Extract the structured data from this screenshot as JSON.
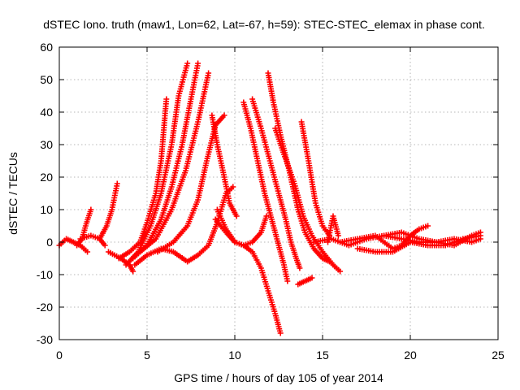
{
  "chart_data": {
    "type": "scatter",
    "title": "dSTEC Iono. truth (maw1, Lon=62, Lat=-67, h=59): STEC-STEC_elemax in phase cont.",
    "xlabel": "GPS time / hours of day 105 of year 2014",
    "ylabel": "dSTEC  / TECUs",
    "xlim": [
      0,
      25
    ],
    "ylim": [
      -30,
      60
    ],
    "xticks": [
      0,
      5,
      10,
      15,
      20,
      25
    ],
    "yticks": [
      -30,
      -20,
      -10,
      0,
      10,
      20,
      30,
      40,
      50,
      60
    ],
    "grid": true,
    "marker": "plus",
    "color": "#ff0000",
    "series": [
      {
        "points": [
          [
            0.0,
            -1
          ],
          [
            0.4,
            1
          ],
          [
            0.8,
            0
          ],
          [
            1.2,
            -1
          ],
          [
            1.6,
            -3
          ]
        ]
      },
      {
        "points": [
          [
            1.0,
            -1
          ],
          [
            1.3,
            1
          ],
          [
            1.5,
            5
          ],
          [
            1.8,
            10
          ]
        ]
      },
      {
        "points": [
          [
            1.2,
            1
          ],
          [
            1.8,
            2
          ],
          [
            2.3,
            1
          ],
          [
            2.6,
            -1
          ]
        ]
      },
      {
        "points": [
          [
            2.3,
            1
          ],
          [
            2.7,
            5
          ],
          [
            3.0,
            10
          ],
          [
            3.3,
            18
          ]
        ]
      },
      {
        "points": [
          [
            2.8,
            -3
          ],
          [
            3.5,
            -5
          ],
          [
            4.0,
            -7
          ],
          [
            4.2,
            -9
          ]
        ]
      },
      {
        "points": [
          [
            3.4,
            -5
          ],
          [
            4.0,
            -3
          ],
          [
            4.6,
            0
          ],
          [
            5.0,
            6
          ],
          [
            5.5,
            15
          ],
          [
            5.8,
            25
          ],
          [
            6.1,
            44
          ]
        ]
      },
      {
        "points": [
          [
            3.8,
            -7
          ],
          [
            4.5,
            -3
          ],
          [
            5.2,
            5
          ],
          [
            5.8,
            15
          ],
          [
            6.4,
            30
          ],
          [
            6.8,
            45
          ],
          [
            7.3,
            55
          ]
        ]
      },
      {
        "points": [
          [
            4.2,
            -5
          ],
          [
            5.0,
            -1
          ],
          [
            5.8,
            7
          ],
          [
            6.4,
            17
          ],
          [
            7.0,
            30
          ],
          [
            7.5,
            44
          ],
          [
            7.9,
            55
          ]
        ]
      },
      {
        "points": [
          [
            4.6,
            -3
          ],
          [
            5.5,
            1
          ],
          [
            6.4,
            10
          ],
          [
            7.2,
            22
          ],
          [
            7.9,
            37
          ],
          [
            8.5,
            52
          ]
        ]
      },
      {
        "points": [
          [
            4.3,
            -7
          ],
          [
            5.0,
            -4
          ],
          [
            5.8,
            -2
          ],
          [
            6.5,
            -3
          ],
          [
            7.3,
            -6
          ],
          [
            7.9,
            -4
          ],
          [
            8.5,
            -1
          ],
          [
            9.0,
            6
          ],
          [
            9.5,
            15
          ],
          [
            9.9,
            17
          ]
        ]
      },
      {
        "points": [
          [
            5.6,
            -3
          ],
          [
            6.5,
            0
          ],
          [
            7.3,
            5
          ],
          [
            7.9,
            13
          ],
          [
            8.4,
            25
          ],
          [
            8.9,
            36
          ],
          [
            9.4,
            39
          ]
        ]
      },
      {
        "points": [
          [
            8.7,
            39
          ],
          [
            9.0,
            30
          ],
          [
            9.4,
            20
          ],
          [
            9.7,
            12
          ],
          [
            10.1,
            8
          ]
        ]
      },
      {
        "points": [
          [
            8.9,
            7
          ],
          [
            9.5,
            3
          ],
          [
            10.0,
            0
          ],
          [
            10.5,
            -1
          ],
          [
            11.0,
            -3
          ],
          [
            11.5,
            -8
          ],
          [
            11.9,
            -15
          ],
          [
            12.3,
            -22
          ],
          [
            12.6,
            -28
          ]
        ]
      },
      {
        "points": [
          [
            9.0,
            10
          ],
          [
            9.5,
            4
          ],
          [
            10.0,
            0
          ],
          [
            10.5,
            -1
          ],
          [
            11.0,
            0
          ],
          [
            11.5,
            3
          ],
          [
            11.8,
            8
          ]
        ]
      },
      {
        "points": [
          [
            10.5,
            43
          ],
          [
            10.9,
            35
          ],
          [
            11.3,
            25
          ],
          [
            11.7,
            15
          ],
          [
            12.1,
            7
          ],
          [
            12.5,
            -1
          ],
          [
            12.8,
            -7
          ],
          [
            13.0,
            -12
          ]
        ]
      },
      {
        "points": [
          [
            11.0,
            44
          ],
          [
            11.5,
            35
          ],
          [
            12.0,
            25
          ],
          [
            12.5,
            15
          ],
          [
            12.9,
            7
          ],
          [
            13.2,
            0
          ],
          [
            13.5,
            -5
          ],
          [
            13.7,
            -8
          ]
        ]
      },
      {
        "points": [
          [
            11.9,
            52
          ],
          [
            12.2,
            43
          ],
          [
            12.6,
            33
          ],
          [
            13.1,
            22
          ],
          [
            13.6,
            10
          ],
          [
            14.0,
            3
          ],
          [
            14.5,
            -2
          ],
          [
            15.0,
            -5
          ],
          [
            15.4,
            -6
          ]
        ]
      },
      {
        "points": [
          [
            12.3,
            35
          ],
          [
            12.8,
            27
          ],
          [
            13.4,
            18
          ],
          [
            13.9,
            8
          ],
          [
            14.4,
            2
          ],
          [
            15.0,
            -3
          ],
          [
            15.6,
            -7
          ],
          [
            16.0,
            -9
          ]
        ]
      },
      {
        "points": [
          [
            13.8,
            37
          ],
          [
            14.2,
            25
          ],
          [
            14.6,
            12
          ],
          [
            15.0,
            5
          ],
          [
            15.4,
            2
          ]
        ]
      },
      {
        "points": [
          [
            13.6,
            -13
          ],
          [
            14.0,
            -12
          ],
          [
            14.4,
            -11
          ]
        ]
      },
      {
        "points": [
          [
            15.3,
            0
          ],
          [
            15.6,
            8
          ],
          [
            15.9,
            2
          ]
        ]
      },
      {
        "points": [
          [
            14.5,
            0
          ],
          [
            15.5,
            1
          ],
          [
            16.5,
            -1
          ],
          [
            17.5,
            1
          ],
          [
            18.5,
            2
          ],
          [
            19.5,
            1
          ],
          [
            20.5,
            0
          ],
          [
            21.5,
            0
          ],
          [
            22.5,
            1
          ],
          [
            23.5,
            0
          ],
          [
            24.0,
            1
          ]
        ]
      },
      {
        "points": [
          [
            16.0,
            0
          ],
          [
            17.0,
            1
          ],
          [
            18.0,
            2
          ],
          [
            19.0,
            -2
          ],
          [
            19.5,
            -1
          ],
          [
            20.0,
            2
          ],
          [
            20.5,
            4
          ],
          [
            21.0,
            5
          ]
        ]
      },
      {
        "points": [
          [
            17.0,
            -2
          ],
          [
            18.0,
            -3
          ],
          [
            19.0,
            -3
          ],
          [
            20.0,
            0
          ],
          [
            21.0,
            -1
          ],
          [
            22.0,
            -1
          ],
          [
            23.0,
            1
          ],
          [
            24.0,
            2
          ]
        ]
      },
      {
        "points": [
          [
            18.5,
            2
          ],
          [
            19.5,
            3
          ],
          [
            20.5,
            1
          ],
          [
            21.5,
            0
          ],
          [
            22.5,
            -1
          ],
          [
            23.5,
            2
          ],
          [
            24.0,
            3
          ]
        ]
      }
    ]
  }
}
